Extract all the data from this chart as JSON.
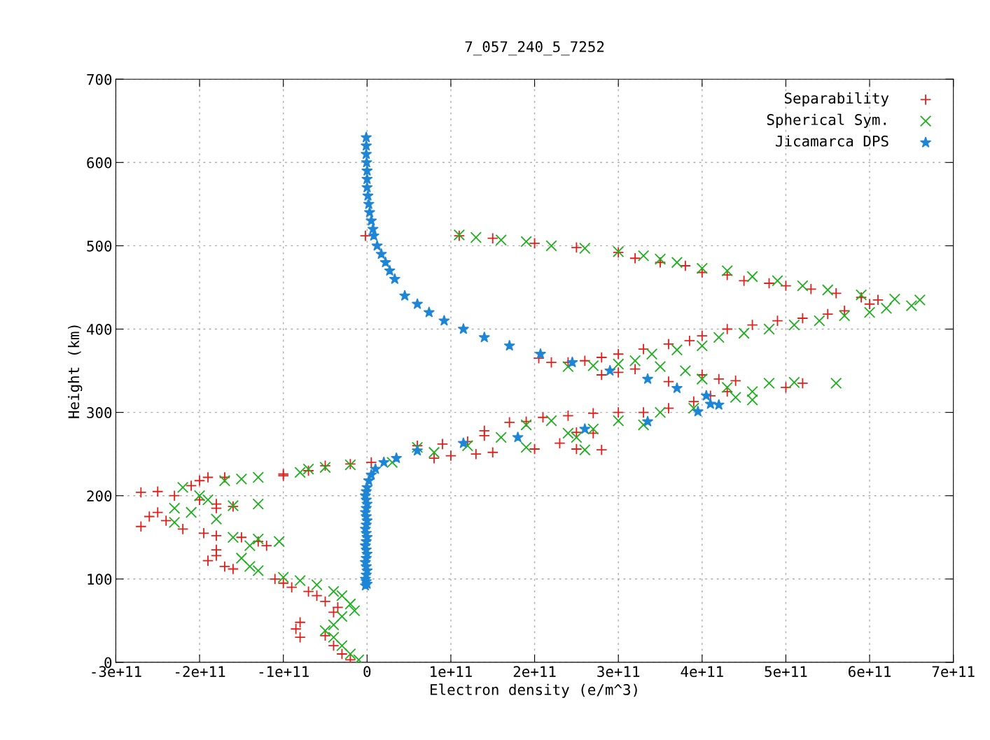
{
  "chart_data": {
    "type": "scatter",
    "title": "7_057_240_5_7252",
    "xlabel": "Electron density (e/m^3)",
    "ylabel": "Height (km)",
    "xlim": [
      -300000000000.0,
      700000000000.0
    ],
    "ylim": [
      0,
      700
    ],
    "xticks": [
      {
        "value": -300000000000.0,
        "label": "-3e+11"
      },
      {
        "value": -200000000000.0,
        "label": "-2e+11"
      },
      {
        "value": -100000000000.0,
        "label": "-1e+11"
      },
      0,
      {
        "value": 100000000000.0,
        "label": "1e+11"
      },
      {
        "value": 200000000000.0,
        "label": "2e+11"
      },
      {
        "value": 300000000000.0,
        "label": "3e+11"
      },
      {
        "value": 400000000000.0,
        "label": "4e+11"
      },
      {
        "value": 500000000000.0,
        "label": "5e+11"
      },
      {
        "value": 600000000000.0,
        "label": "6e+11"
      },
      {
        "value": 700000000000.0,
        "label": "7e+11"
      }
    ],
    "yticks": [
      0,
      100,
      200,
      300,
      400,
      500,
      600,
      700
    ],
    "grid": true,
    "legend": "top right",
    "series": [
      {
        "name": "Separability",
        "color": "#e0201b",
        "marker": "plus",
        "x": [
          -2000000000.0,
          110000000000.0,
          150000000000.0,
          200000000000.0,
          250000000000.0,
          300000000000.0,
          320000000000.0,
          350000000000.0,
          380000000000.0,
          400000000000.0,
          430000000000.0,
          450000000000.0,
          480000000000.0,
          500000000000.0,
          530000000000.0,
          560000000000.0,
          590000000000.0,
          610000000000.0,
          600000000000.0,
          570000000000.0,
          550000000000.0,
          520000000000.0,
          490000000000.0,
          460000000000.0,
          430000000000.0,
          400000000000.0,
          385000000000.0,
          360000000000.0,
          330000000000.0,
          300000000000.0,
          280000000000.0,
          260000000000.0,
          240000000000.0,
          220000000000.0,
          205000000000.0,
          320000000000.0,
          300000000000.0,
          280000000000.0,
          360000000000.0,
          400000000000.0,
          420000000000.0,
          440000000000.0,
          520000000000.0,
          500000000000.0,
          430000000000.0,
          410000000000.0,
          390000000000.0,
          360000000000.0,
          330000000000.0,
          300000000000.0,
          270000000000.0,
          240000000000.0,
          210000000000.0,
          190000000000.0,
          170000000000.0,
          140000000000.0,
          140000000000.0,
          120000000000.0,
          90000000000.0,
          60000000000.0,
          80000000000.0,
          100000000000.0,
          130000000000.0,
          150000000000.0,
          200000000000.0,
          230000000000.0,
          250000000000.0,
          270000000000.0,
          250000000000.0,
          280000000000.0,
          5000000000.0,
          -20000000000.0,
          -50000000000.0,
          -70000000000.0,
          -100000000000.0,
          -100000000000.0,
          -170000000000.0,
          -190000000000.0,
          -200000000000.0,
          -210000000000.0,
          -250000000000.0,
          -270000000000.0,
          -230000000000.0,
          -200000000000.0,
          -180000000000.0,
          -160000000000.0,
          -180000000000.0,
          -250000000000.0,
          -260000000000.0,
          -240000000000.0,
          -270000000000.0,
          -220000000000.0,
          -195000000000.0,
          -180000000000.0,
          -150000000000.0,
          -130000000000.0,
          -120000000000.0,
          -180000000000.0,
          -180000000000.0,
          -190000000000.0,
          -170000000000.0,
          -160000000000.0,
          -110000000000.0,
          -100000000000.0,
          -90000000000.0,
          -70000000000.0,
          -60000000000.0,
          -50000000000.0,
          -35000000000.0,
          -40000000000.0,
          -80000000000.0,
          -85000000000.0,
          -80000000000.0,
          -50000000000.0,
          -40000000000.0,
          -30000000000.0,
          -20000000000.0
        ],
        "values": [
          512,
          512,
          509,
          503,
          498,
          492,
          485,
          480,
          476,
          468,
          465,
          458,
          455,
          452,
          448,
          443,
          438,
          435,
          430,
          422,
          418,
          413,
          410,
          405,
          400,
          392,
          386,
          382,
          376,
          370,
          366,
          362,
          360,
          360,
          365,
          352,
          348,
          345,
          337,
          345,
          340,
          338,
          335,
          330,
          325,
          320,
          313,
          305,
          300,
          300,
          299,
          296,
          294,
          289,
          288,
          278,
          272,
          265,
          262,
          260,
          245,
          248,
          250,
          252,
          256,
          263,
          276,
          275,
          256,
          255,
          240,
          238,
          236,
          230,
          226,
          224,
          222,
          222,
          218,
          212,
          205,
          204,
          200,
          195,
          190,
          187,
          185,
          180,
          175,
          170,
          163,
          160,
          155,
          152,
          150,
          145,
          140,
          135,
          128,
          122,
          115,
          112,
          100,
          95,
          90,
          85,
          80,
          73,
          66,
          60,
          48,
          40,
          30,
          32,
          20,
          10,
          3
        ]
      },
      {
        "name": "Spherical Sym.",
        "color": "#1fae1f",
        "marker": "cross",
        "x": [
          110000000000.0,
          130000000000.0,
          160000000000.0,
          190000000000.0,
          220000000000.0,
          260000000000.0,
          300000000000.0,
          330000000000.0,
          350000000000.0,
          370000000000.0,
          400000000000.0,
          430000000000.0,
          460000000000.0,
          490000000000.0,
          520000000000.0,
          550000000000.0,
          590000000000.0,
          630000000000.0,
          660000000000.0,
          650000000000.0,
          620000000000.0,
          600000000000.0,
          570000000000.0,
          540000000000.0,
          510000000000.0,
          480000000000.0,
          450000000000.0,
          420000000000.0,
          400000000000.0,
          370000000000.0,
          340000000000.0,
          320000000000.0,
          300000000000.0,
          270000000000.0,
          240000000000.0,
          350000000000.0,
          380000000000.0,
          400000000000.0,
          430000000000.0,
          460000000000.0,
          480000000000.0,
          510000000000.0,
          560000000000.0,
          460000000000.0,
          440000000000.0,
          390000000000.0,
          350000000000.0,
          330000000000.0,
          300000000000.0,
          270000000000.0,
          250000000000.0,
          240000000000.0,
          220000000000.0,
          190000000000.0,
          160000000000.0,
          120000000000.0,
          80000000000.0,
          60000000000.0,
          260000000000.0,
          190000000000.0,
          30000000000.0,
          -20000000000.0,
          -50000000000.0,
          -70000000000.0,
          -80000000000.0,
          -130000000000.0,
          -150000000000.0,
          -170000000000.0,
          -220000000000.0,
          -200000000000.0,
          -190000000000.0,
          -130000000000.0,
          -160000000000.0,
          -230000000000.0,
          -210000000000.0,
          -180000000000.0,
          -230000000000.0,
          -160000000000.0,
          -130000000000.0,
          -105000000000.0,
          -140000000000.0,
          -150000000000.0,
          -140000000000.0,
          -130000000000.0,
          -100000000000.0,
          -80000000000.0,
          -60000000000.0,
          -40000000000.0,
          -30000000000.0,
          -20000000000.0,
          -15000000000.0,
          -30000000000.0,
          -40000000000.0,
          -50000000000.0,
          -40000000000.0,
          -30000000000.0,
          -20000000000.0,
          -10000000000.0
        ],
        "values": [
          513,
          510,
          507,
          505,
          500,
          497,
          493,
          488,
          484,
          480,
          473,
          470,
          463,
          458,
          452,
          447,
          441,
          436,
          435,
          428,
          425,
          420,
          416,
          410,
          405,
          400,
          395,
          390,
          380,
          375,
          370,
          362,
          358,
          356,
          355,
          355,
          350,
          340,
          330,
          325,
          335,
          336,
          335,
          315,
          318,
          305,
          300,
          285,
          290,
          280,
          270,
          275,
          290,
          285,
          270,
          260,
          252,
          258,
          255,
          258,
          240,
          237,
          234,
          232,
          228,
          222,
          220,
          218,
          210,
          200,
          195,
          190,
          188,
          185,
          180,
          172,
          168,
          150,
          148,
          145,
          140,
          125,
          115,
          110,
          102,
          98,
          93,
          85,
          80,
          70,
          62,
          55,
          45,
          38,
          30,
          20,
          10,
          3
        ]
      },
      {
        "name": "Jicamarca DPS",
        "color": "#1f86d6",
        "marker": "star",
        "x": [
          -1000000000.0,
          -1000000000.0,
          -1000000000.0,
          -500000000.0,
          0,
          0,
          0,
          1000000000.0,
          2000000000.0,
          3000000000.0,
          5000000000.0,
          7000000000.0,
          8000000000.0,
          12000000000.0,
          17000000000.0,
          22000000000.0,
          27000000000.0,
          33000000000.0,
          45000000000.0,
          60000000000.0,
          74000000000.0,
          92000000000.0,
          115000000000.0,
          140000000000.0,
          170000000000.0,
          207000000000.0,
          245000000000.0,
          290000000000.0,
          335000000000.0,
          370000000000.0,
          405000000000.0,
          410000000000.0,
          395000000000.0,
          420000000000.0,
          335000000000.0,
          260000000000.0,
          180000000000.0,
          115000000000.0,
          60000000000.0,
          35000000000.0,
          20000000000.0,
          10000000000.0,
          5000000000.0,
          2000000000.0,
          0,
          -1000000000.0,
          -2000000000.0,
          -1000000000.0,
          0,
          -1000000000.0,
          -2000000000.0,
          -1000000000.0,
          0,
          -1000000000.0,
          -2000000000.0,
          -1000000000.0,
          0,
          -1000000000.0,
          -2000000000.0,
          -1000000000.0,
          0,
          -1000000000.0,
          -2000000000.0,
          -1000000000.0,
          0,
          -1000000000.0,
          -2000000000.0,
          -1000000000.0,
          0,
          -2000000000.0
        ],
        "values": [
          630,
          620,
          610,
          600,
          590,
          580,
          570,
          560,
          550,
          540,
          530,
          520,
          512,
          500,
          490,
          480,
          470,
          460,
          440,
          430,
          420,
          410,
          400,
          390,
          380,
          370,
          360,
          350,
          340,
          329,
          320,
          310,
          301,
          309,
          289,
          280,
          270,
          263,
          254,
          245,
          240,
          232,
          225,
          218,
          210,
          205,
          200,
          195,
          190,
          185,
          180,
          175,
          170,
          165,
          160,
          155,
          150,
          145,
          140,
          135,
          130,
          125,
          120,
          115,
          110,
          105,
          100,
          97,
          94,
          92
        ]
      }
    ]
  }
}
